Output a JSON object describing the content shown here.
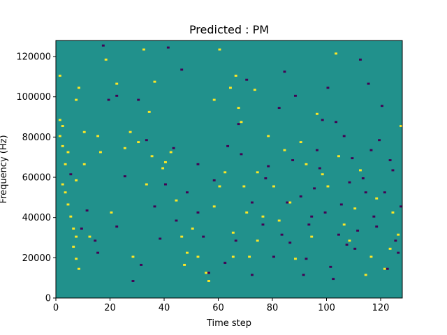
{
  "chart_data": {
    "type": "heatmap",
    "title": "Predicted : PM",
    "xlabel": "Time step",
    "ylabel": "Frequency (Hz)",
    "xlim": [
      0,
      128
    ],
    "ylim": [
      0,
      128000
    ],
    "xticks": [
      0,
      20,
      40,
      60,
      80,
      100,
      120
    ],
    "xtick_labels": [
      "0",
      "20",
      "40",
      "60",
      "80",
      "100",
      "120"
    ],
    "yticks": [
      0,
      20000,
      40000,
      60000,
      80000,
      100000,
      120000
    ],
    "ytick_labels": [
      "0",
      "20000",
      "40000",
      "60000",
      "80000",
      "100000",
      "120000"
    ],
    "n_time_steps": 128,
    "n_freq_bins": 128,
    "bin_hz": 1000,
    "grid": false,
    "colormap": "viridis",
    "color_levels": {
      "low": "#440154",
      "mid": "#21918c",
      "high": "#fde725"
    },
    "background_level": "mid",
    "cells": {
      "high": [
        [
          1,
          110
        ],
        [
          1,
          88
        ],
        [
          2,
          85
        ],
        [
          1,
          80
        ],
        [
          2,
          75
        ],
        [
          4,
          72
        ],
        [
          3,
          66
        ],
        [
          2,
          56
        ],
        [
          3,
          52
        ],
        [
          4,
          46
        ],
        [
          5,
          40
        ],
        [
          6,
          34
        ],
        [
          7,
          30
        ],
        [
          6,
          25
        ],
        [
          7,
          19
        ],
        [
          8,
          14
        ],
        [
          7,
          58
        ],
        [
          7,
          98
        ],
        [
          8,
          104
        ],
        [
          10,
          82
        ],
        [
          10,
          66
        ],
        [
          12,
          30
        ],
        [
          15,
          80
        ],
        [
          16,
          72
        ],
        [
          18,
          118
        ],
        [
          20,
          42
        ],
        [
          22,
          106
        ],
        [
          25,
          74
        ],
        [
          27,
          82
        ],
        [
          28,
          20
        ],
        [
          30,
          77
        ],
        [
          32,
          123
        ],
        [
          33,
          56
        ],
        [
          34,
          92
        ],
        [
          35,
          70
        ],
        [
          36,
          107
        ],
        [
          39,
          64
        ],
        [
          40,
          67
        ],
        [
          42,
          72
        ],
        [
          44,
          48
        ],
        [
          46,
          30
        ],
        [
          47,
          16
        ],
        [
          48,
          22
        ],
        [
          50,
          34
        ],
        [
          52,
          20
        ],
        [
          55,
          12
        ],
        [
          56,
          8
        ],
        [
          58,
          98
        ],
        [
          58,
          45
        ],
        [
          60,
          123
        ],
        [
          60,
          55
        ],
        [
          62,
          62
        ],
        [
          64,
          104
        ],
        [
          65,
          32
        ],
        [
          65,
          20
        ],
        [
          66,
          110
        ],
        [
          67,
          94
        ],
        [
          68,
          87
        ],
        [
          69,
          55
        ],
        [
          70,
          42
        ],
        [
          71,
          20
        ],
        [
          73,
          103
        ],
        [
          74,
          62
        ],
        [
          74,
          28
        ],
        [
          76,
          40
        ],
        [
          78,
          80
        ],
        [
          80,
          55
        ],
        [
          82,
          38
        ],
        [
          84,
          73
        ],
        [
          86,
          47
        ],
        [
          88,
          19
        ],
        [
          90,
          77
        ],
        [
          92,
          66
        ],
        [
          94,
          30
        ],
        [
          96,
          91
        ],
        [
          98,
          61
        ],
        [
          100,
          55
        ],
        [
          103,
          121
        ],
        [
          104,
          70
        ],
        [
          106,
          36
        ],
        [
          108,
          28
        ],
        [
          110,
          44
        ],
        [
          112,
          63
        ],
        [
          114,
          11
        ],
        [
          116,
          20
        ],
        [
          118,
          49
        ],
        [
          121,
          14
        ],
        [
          123,
          24
        ],
        [
          124,
          42
        ],
        [
          126,
          31
        ],
        [
          127,
          85
        ]
      ],
      "low": [
        [
          17,
          125
        ],
        [
          22,
          100
        ],
        [
          30,
          98
        ],
        [
          41,
          124
        ],
        [
          43,
          74
        ],
        [
          46,
          113
        ],
        [
          52,
          66
        ],
        [
          58,
          58
        ],
        [
          63,
          75
        ],
        [
          67,
          86
        ],
        [
          70,
          108
        ],
        [
          72,
          47
        ],
        [
          76,
          36
        ],
        [
          78,
          65
        ],
        [
          80,
          20
        ],
        [
          82,
          94
        ],
        [
          84,
          112
        ],
        [
          86,
          27
        ],
        [
          88,
          100
        ],
        [
          90,
          50
        ],
        [
          92,
          19
        ],
        [
          94,
          40
        ],
        [
          96,
          73
        ],
        [
          98,
          88
        ],
        [
          100,
          104
        ],
        [
          102,
          9
        ],
        [
          104,
          31
        ],
        [
          106,
          80
        ],
        [
          108,
          57
        ],
        [
          110,
          24
        ],
        [
          112,
          118
        ],
        [
          114,
          52
        ],
        [
          116,
          73
        ],
        [
          118,
          35
        ],
        [
          120,
          95
        ],
        [
          122,
          14
        ],
        [
          124,
          63
        ],
        [
          126,
          22
        ],
        [
          5,
          61
        ],
        [
          9,
          34
        ],
        [
          11,
          43
        ],
        [
          14,
          28
        ],
        [
          15,
          22
        ],
        [
          19,
          98
        ],
        [
          22,
          35
        ],
        [
          25,
          60
        ],
        [
          28,
          8
        ],
        [
          31,
          16
        ],
        [
          33,
          78
        ],
        [
          36,
          45
        ],
        [
          38,
          29
        ],
        [
          40,
          56
        ],
        [
          44,
          38
        ],
        [
          48,
          52
        ],
        [
          52,
          42
        ],
        [
          54,
          30
        ],
        [
          56,
          12
        ],
        [
          62,
          17
        ],
        [
          66,
          28
        ],
        [
          68,
          71
        ],
        [
          72,
          11
        ],
        [
          77,
          59
        ],
        [
          83,
          31
        ],
        [
          85,
          47
        ],
        [
          87,
          68
        ],
        [
          91,
          11
        ],
        [
          93,
          36
        ],
        [
          95,
          54
        ],
        [
          97,
          64
        ],
        [
          99,
          42
        ],
        [
          101,
          15
        ],
        [
          103,
          87
        ],
        [
          105,
          46
        ],
        [
          107,
          26
        ],
        [
          109,
          69
        ],
        [
          111,
          33
        ],
        [
          113,
          59
        ],
        [
          115,
          106
        ],
        [
          117,
          40
        ],
        [
          119,
          78
        ],
        [
          121,
          52
        ],
        [
          123,
          68
        ],
        [
          125,
          28
        ],
        [
          127,
          45
        ]
      ]
    }
  }
}
